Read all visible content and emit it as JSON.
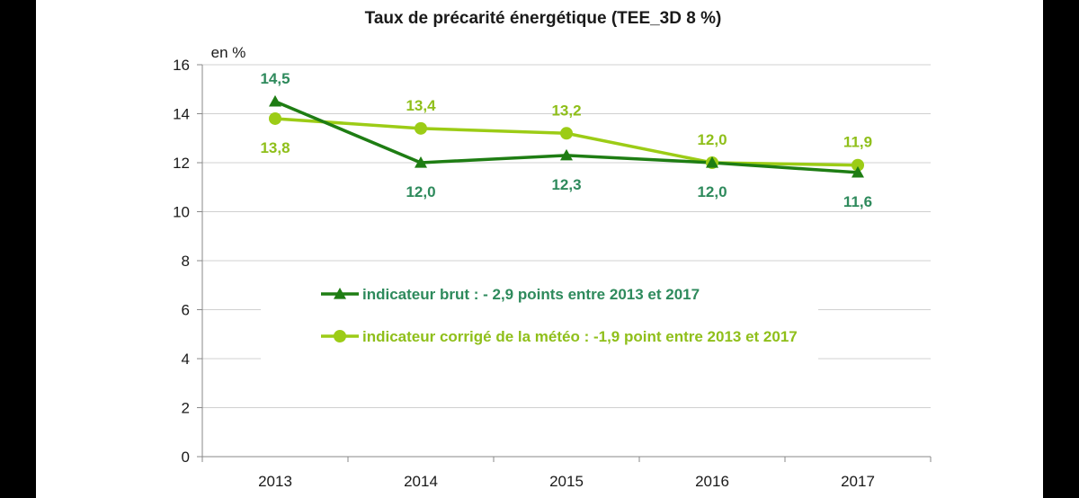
{
  "chart_data": {
    "type": "line",
    "title": "Taux de précarité énergétique (TEE_3D 8 %)",
    "unit_label": "en %",
    "categories": [
      "2013",
      "2014",
      "2015",
      "2016",
      "2017"
    ],
    "ylim": [
      0,
      16
    ],
    "yticks": [
      0,
      2,
      4,
      6,
      8,
      10,
      12,
      14,
      16
    ],
    "grid": true,
    "legend_position": "center-left",
    "series": [
      {
        "name": "indicateur brut : - 2,9 points entre 2013 et 2017",
        "values": [
          14.5,
          12.0,
          12.3,
          12.0,
          11.6
        ],
        "labels": [
          "14,5",
          "12,0",
          "12,3",
          "12,0",
          "11,6"
        ],
        "label_position": [
          "above",
          "below",
          "below",
          "below",
          "below"
        ],
        "marker": "triangle",
        "line_color": "#1e7d13",
        "label_color": "#2e8a5c"
      },
      {
        "name": "indicateur corrigé de la météo : -1,9 point entre 2013 et 2017",
        "values": [
          13.8,
          13.4,
          13.2,
          12.0,
          11.9
        ],
        "labels": [
          "13,8",
          "13,4",
          "13,2",
          "12,0",
          "11,9"
        ],
        "label_position": [
          "below",
          "above",
          "above",
          "above",
          "above"
        ],
        "marker": "circle",
        "line_color": "#9ccc16",
        "label_color": "#8fbf1a"
      }
    ]
  }
}
